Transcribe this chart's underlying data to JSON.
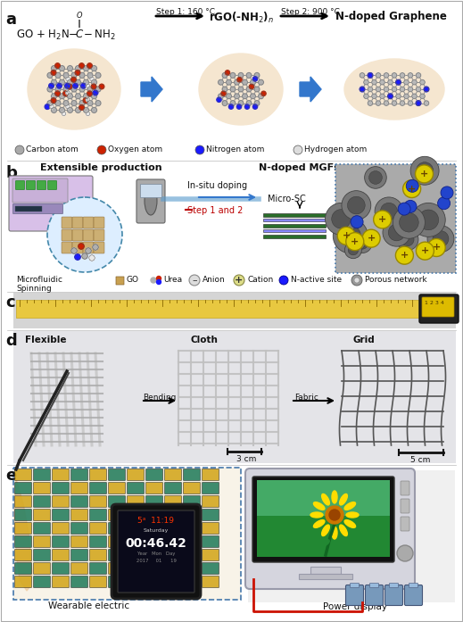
{
  "fig_width": 5.19,
  "fig_height": 6.97,
  "bg_color": "#ffffff",
  "panel_a": {
    "label": "a",
    "legend": [
      "Carbon atom",
      "Oxygen atom",
      "Nitrogen atom",
      "Hydrogen atom"
    ],
    "legend_colors": [
      "#aaaaaa",
      "#cc2200",
      "#1a1aff",
      "#dddddd"
    ],
    "ellipse_color": "#f5e6d0",
    "arrow_color": "#3377cc"
  },
  "panel_b": {
    "label": "b",
    "title1": "Extensible production",
    "title2": "N-doped MGFs"
  },
  "panel_c": {
    "label": "c",
    "tape_color": "#e8c840"
  },
  "panel_d": {
    "label": "d"
  },
  "panel_e": {
    "label": "e",
    "text1": "Wearable electric",
    "text2": "Power display"
  },
  "text_color": "#000000",
  "label_fontsize": 13
}
